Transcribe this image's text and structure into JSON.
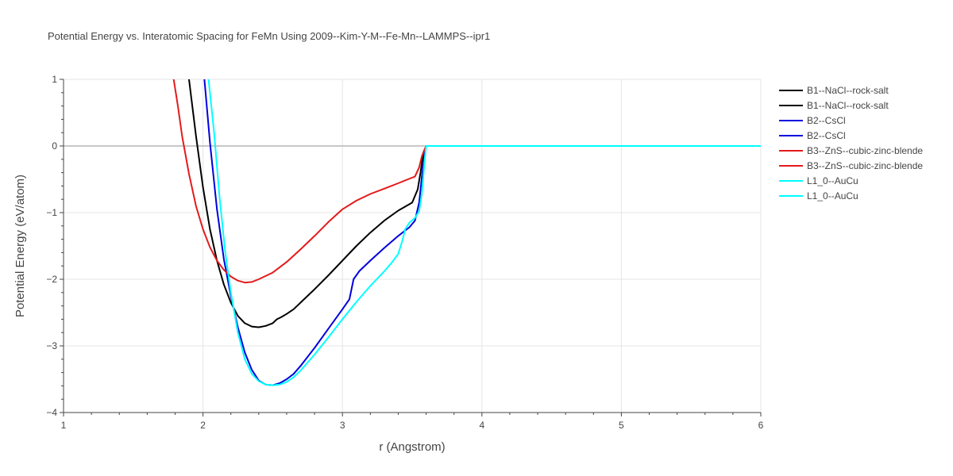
{
  "chart_data": {
    "type": "line",
    "title": "Potential Energy vs. Interatomic Spacing for FeMn Using 2009--Kim-Y-M--Fe-Mn--LAMMPS--ipr1",
    "xlabel": "r (Angstrom)",
    "ylabel": "Potential Energy (eV/atom)",
    "xlim": [
      1,
      6
    ],
    "ylim": [
      -4,
      1
    ],
    "xticks": [
      1,
      2,
      3,
      4,
      5,
      6
    ],
    "yticks": [
      -4,
      -3,
      -2,
      -1,
      0,
      1
    ],
    "xtick_labels": [
      "1",
      "2",
      "3",
      "4",
      "5",
      "6"
    ],
    "ytick_labels": [
      "−4",
      "−3",
      "−2",
      "−1",
      "0",
      "1"
    ],
    "grid": true,
    "legend_position": "right",
    "series": [
      {
        "name": "B1--NaCl--rock-salt",
        "color": "#000000",
        "x": [
          1.9,
          1.95,
          2.0,
          2.05,
          2.1,
          2.15,
          2.2,
          2.25,
          2.3,
          2.35,
          2.4,
          2.45,
          2.5,
          2.53,
          2.56,
          2.6,
          2.65,
          2.7,
          2.8,
          2.9,
          3.0,
          3.1,
          3.2,
          3.3,
          3.4,
          3.5,
          3.54,
          3.56,
          3.58,
          3.6,
          6.0
        ],
        "y": [
          1.0,
          0.15,
          -0.62,
          -1.25,
          -1.72,
          -2.08,
          -2.35,
          -2.55,
          -2.66,
          -2.71,
          -2.72,
          -2.7,
          -2.66,
          -2.6,
          -2.57,
          -2.52,
          -2.45,
          -2.35,
          -2.15,
          -1.94,
          -1.72,
          -1.5,
          -1.3,
          -1.12,
          -0.97,
          -0.85,
          -0.65,
          -0.4,
          -0.1,
          0.0,
          0.0
        ]
      },
      {
        "name": "B1--NaCl--rock-salt",
        "color": "#000000",
        "x": [],
        "y": []
      },
      {
        "name": "B2--CsCl",
        "color": "#0000dd",
        "x": [
          2.01,
          2.05,
          2.1,
          2.15,
          2.2,
          2.25,
          2.3,
          2.35,
          2.4,
          2.45,
          2.5,
          2.55,
          2.6,
          2.65,
          2.7,
          2.8,
          2.9,
          3.0,
          3.05,
          3.08,
          3.12,
          3.2,
          3.3,
          3.4,
          3.48,
          3.52,
          3.55,
          3.57,
          3.59,
          3.6,
          6.0
        ],
        "y": [
          1.0,
          0.05,
          -0.95,
          -1.7,
          -2.25,
          -2.72,
          -3.1,
          -3.36,
          -3.52,
          -3.58,
          -3.59,
          -3.56,
          -3.5,
          -3.42,
          -3.3,
          -3.03,
          -2.74,
          -2.45,
          -2.3,
          -2.0,
          -1.88,
          -1.72,
          -1.53,
          -1.35,
          -1.22,
          -1.12,
          -0.85,
          -0.45,
          -0.1,
          0.0,
          0.0
        ]
      },
      {
        "name": "B2--CsCl",
        "color": "#0000dd",
        "x": [],
        "y": []
      },
      {
        "name": "B3--ZnS--cubic-zinc-blende",
        "color": "#e31a1c",
        "x": [
          1.79,
          1.82,
          1.85,
          1.9,
          1.95,
          2.0,
          2.05,
          2.1,
          2.15,
          2.2,
          2.25,
          2.3,
          2.35,
          2.4,
          2.5,
          2.6,
          2.7,
          2.8,
          2.9,
          3.0,
          3.1,
          3.2,
          3.3,
          3.4,
          3.47,
          3.52,
          3.55,
          3.57,
          3.59,
          3.6,
          6.0
        ],
        "y": [
          1.0,
          0.6,
          0.15,
          -0.42,
          -0.9,
          -1.25,
          -1.52,
          -1.72,
          -1.86,
          -1.96,
          -2.02,
          -2.05,
          -2.04,
          -2.0,
          -1.9,
          -1.74,
          -1.55,
          -1.35,
          -1.14,
          -0.95,
          -0.82,
          -0.72,
          -0.64,
          -0.56,
          -0.5,
          -0.46,
          -0.32,
          -0.15,
          -0.05,
          0.0,
          0.0
        ]
      },
      {
        "name": "B3--ZnS--cubic-zinc-blende",
        "color": "#e31a1c",
        "x": [],
        "y": []
      },
      {
        "name": "L1_0--AuCu",
        "color": "#00ffff",
        "x": [
          2.04,
          2.08,
          2.12,
          2.16,
          2.2,
          2.25,
          2.3,
          2.35,
          2.4,
          2.45,
          2.5,
          2.55,
          2.6,
          2.65,
          2.7,
          2.8,
          2.9,
          3.0,
          3.1,
          3.2,
          3.3,
          3.35,
          3.4,
          3.43,
          3.45,
          3.48,
          3.52,
          3.55,
          3.57,
          3.59,
          3.6,
          6.0
        ],
        "y": [
          1.0,
          0.2,
          -0.8,
          -1.6,
          -2.2,
          -2.8,
          -3.2,
          -3.42,
          -3.53,
          -3.58,
          -3.59,
          -3.58,
          -3.54,
          -3.47,
          -3.37,
          -3.13,
          -2.87,
          -2.6,
          -2.34,
          -2.1,
          -1.88,
          -1.76,
          -1.62,
          -1.42,
          -1.25,
          -1.15,
          -1.08,
          -0.98,
          -0.7,
          -0.2,
          0.0,
          0.0
        ]
      },
      {
        "name": "L1_0--AuCu",
        "color": "#00ffff",
        "x": [],
        "y": []
      }
    ]
  }
}
